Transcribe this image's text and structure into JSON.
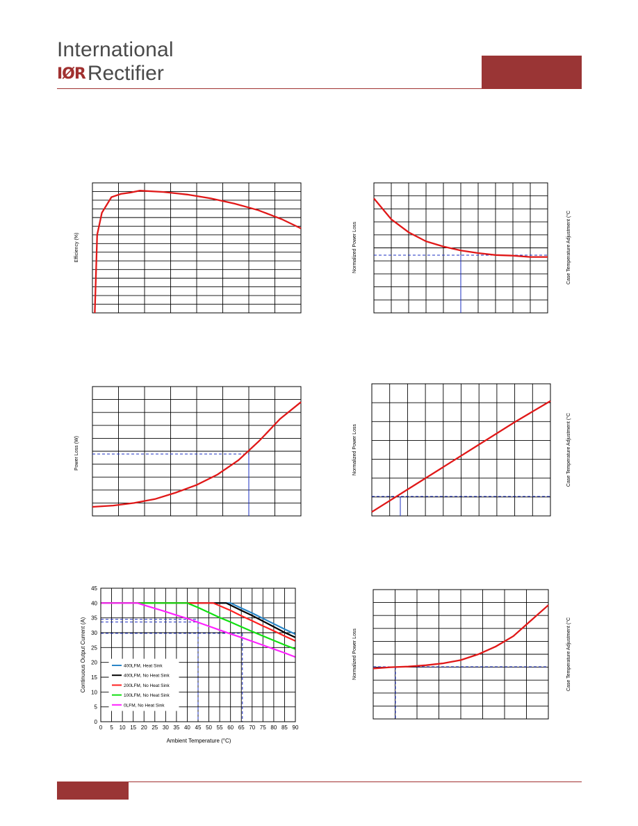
{
  "header": {
    "logo_line1": "International",
    "logo_mark": "IØR",
    "logo_line2": "Rectifier"
  },
  "colors": {
    "brand": "#9a3535",
    "curve": "#e01818",
    "reference": "#1a2cc0"
  },
  "chart_data": [
    {
      "id": "efficiency",
      "type": "line",
      "ylabel": "Efficiency (%)",
      "series": [
        {
          "values": [
            [
              0.05,
              0
            ],
            [
              0.1,
              0.6
            ],
            [
              0.2,
              0.77
            ],
            [
              0.4,
              0.89
            ],
            [
              0.6,
              0.915
            ],
            [
              0.8,
              0.925
            ],
            [
              1,
              0.94
            ],
            [
              1.5,
              0.93
            ],
            [
              2,
              0.91
            ],
            [
              2.5,
              0.88
            ],
            [
              3,
              0.84
            ],
            [
              3.5,
              0.79
            ],
            [
              4,
              0.72
            ],
            [
              4.4,
              0.65
            ]
          ]
        }
      ]
    },
    {
      "id": "norm-power-loss-1",
      "type": "line",
      "ylabel": "Normalized Power Loss",
      "y2label": "Case Temperature Adjustment (°C",
      "series": [
        {
          "values": [
            [
              0,
              0.88
            ],
            [
              0.5,
              0.72
            ],
            [
              1,
              0.62
            ],
            [
              1.5,
              0.55
            ],
            [
              2,
              0.51
            ],
            [
              2.5,
              0.48
            ],
            [
              3,
              0.46
            ],
            [
              3.5,
              0.445
            ],
            [
              4,
              0.44
            ],
            [
              4.5,
              0.43
            ],
            [
              5,
              0.43
            ]
          ]
        }
      ]
    },
    {
      "id": "power-loss",
      "type": "line",
      "ylabel": "Power Loss (W)",
      "series": [
        {
          "values": [
            [
              0,
              0.07
            ],
            [
              0.5,
              0.08
            ],
            [
              1,
              0.1
            ],
            [
              1.5,
              0.13
            ],
            [
              2,
              0.18
            ],
            [
              2.5,
              0.24
            ],
            [
              3,
              0.32
            ],
            [
              3.5,
              0.43
            ],
            [
              4,
              0.58
            ],
            [
              4.5,
              0.75
            ],
            [
              5,
              0.88
            ]
          ]
        }
      ]
    },
    {
      "id": "norm-power-loss-2",
      "type": "line",
      "ylabel": "Normalized Power Loss",
      "y2label": "Case Temperature Adjustment (°C",
      "series": [
        {
          "values": [
            [
              0,
              0.03
            ],
            [
              1,
              0.2
            ],
            [
              2,
              0.37
            ],
            [
              3,
              0.54
            ],
            [
              4,
              0.71
            ],
            [
              5,
              0.87
            ]
          ]
        }
      ]
    },
    {
      "id": "derating",
      "type": "line",
      "xlabel": "Ambient Temperature (°C)",
      "ylabel": "Continuous Output Current (A)",
      "xlim": [
        0,
        90
      ],
      "ylim": [
        0,
        45
      ],
      "x_ticks": [
        0,
        5,
        10,
        15,
        20,
        25,
        30,
        35,
        40,
        45,
        50,
        55,
        60,
        65,
        70,
        75,
        80,
        85,
        90
      ],
      "y_ticks": [
        0,
        5,
        10,
        15,
        20,
        25,
        30,
        35,
        40,
        45
      ],
      "series": [
        {
          "name": "400LFM, Heat Sink",
          "color": "#2a86c8",
          "values": [
            [
              0,
              40
            ],
            [
              60,
              40
            ],
            [
              65,
              38.3
            ],
            [
              70,
              36.6
            ],
            [
              75,
              34.8
            ],
            [
              80,
              33
            ],
            [
              85,
              31.2
            ],
            [
              90,
              29.5
            ]
          ]
        },
        {
          "name": "400LFM, No Heat Sink",
          "color": "#000000",
          "values": [
            [
              0,
              40
            ],
            [
              58,
              40
            ],
            [
              65,
              37.5
            ],
            [
              70,
              35.8
            ],
            [
              75,
              33.9
            ],
            [
              80,
              32
            ],
            [
              85,
              30.1
            ],
            [
              90,
              28.4
            ]
          ]
        },
        {
          "name": "200LFM, No Heat Sink",
          "color": "#ff2020",
          "values": [
            [
              0,
              40
            ],
            [
              52,
              40
            ],
            [
              60,
              37.5
            ],
            [
              65,
              35.7
            ],
            [
              70,
              34
            ],
            [
              75,
              32.3
            ],
            [
              80,
              30.6
            ],
            [
              85,
              28.9
            ],
            [
              90,
              27.2
            ]
          ]
        },
        {
          "name": "100LFM, No Heat Sink",
          "color": "#10e010",
          "values": [
            [
              0,
              40
            ],
            [
              40,
              40
            ],
            [
              45,
              38.5
            ],
            [
              50,
              36.8
            ],
            [
              55,
              35.1
            ],
            [
              60,
              33.6
            ],
            [
              65,
              32
            ],
            [
              70,
              30.4
            ],
            [
              75,
              28.9
            ],
            [
              80,
              27.4
            ],
            [
              85,
              25.9
            ],
            [
              90,
              24.5
            ]
          ]
        },
        {
          "name": "0LFM, No Heat Sink",
          "color": "#ff20ff",
          "values": [
            [
              0,
              40
            ],
            [
              17,
              40
            ],
            [
              20,
              39.3
            ],
            [
              25,
              38.2
            ],
            [
              30,
              37.1
            ],
            [
              35,
              35.9
            ],
            [
              40,
              34.8
            ],
            [
              45,
              33.5
            ],
            [
              50,
              32.2
            ],
            [
              55,
              30.9
            ],
            [
              60,
              29.6
            ],
            [
              65,
              28.4
            ],
            [
              70,
              27.1
            ],
            [
              75,
              25.8
            ],
            [
              80,
              24.5
            ],
            [
              85,
              23.2
            ],
            [
              90,
              21.8
            ]
          ]
        }
      ]
    },
    {
      "id": "norm-power-loss-3",
      "type": "line",
      "ylabel": "Normalized Power Loss",
      "y2label": "Case Temperature Adjustment (°C",
      "series": [
        {
          "values": [
            [
              0,
              0.39
            ],
            [
              0.5,
              0.4
            ],
            [
              1,
              0.405
            ],
            [
              1.5,
              0.415
            ],
            [
              2,
              0.43
            ],
            [
              2.5,
              0.455
            ],
            [
              3,
              0.5
            ],
            [
              3.5,
              0.56
            ],
            [
              4,
              0.64
            ],
            [
              4.5,
              0.76
            ],
            [
              5,
              0.88
            ]
          ]
        }
      ]
    }
  ]
}
